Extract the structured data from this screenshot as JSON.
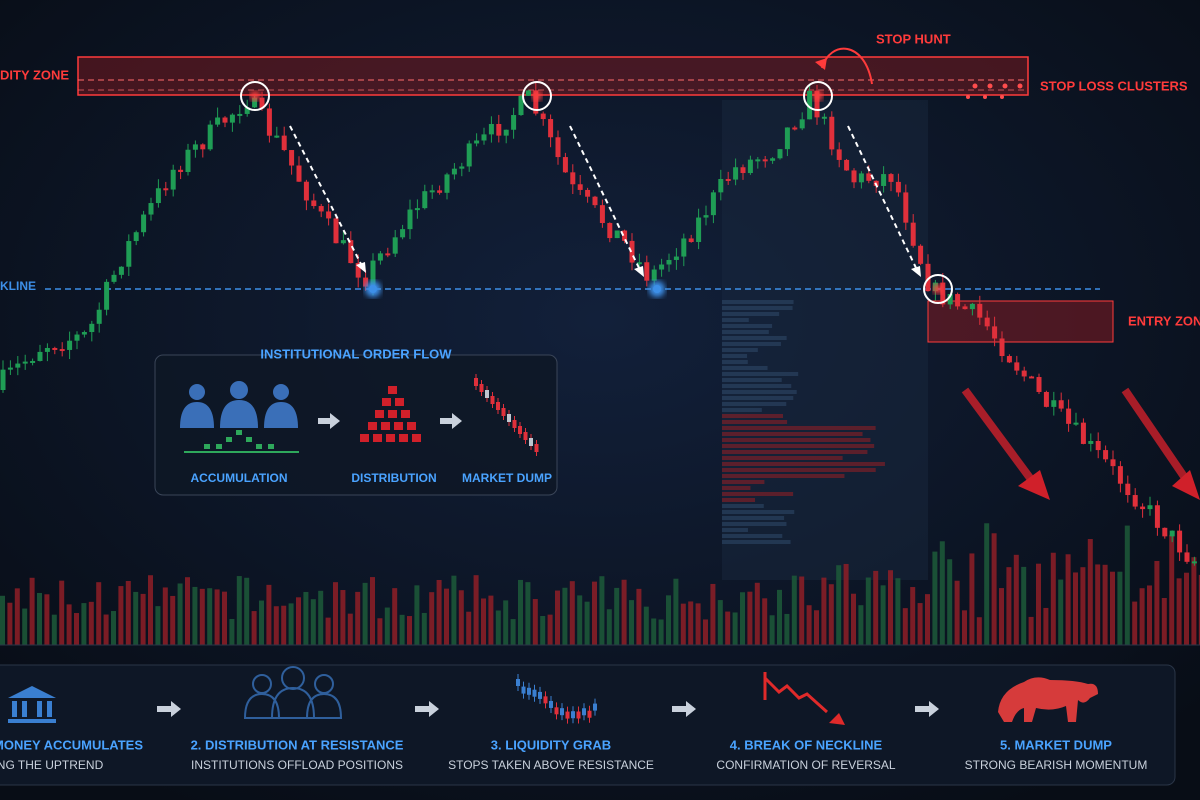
{
  "zones": {
    "liquidity_zone": "DITY ZONE",
    "stop_hunt": "STOP HUNT",
    "stop_loss_clusters": "STOP LOSS CLUSTERS",
    "neckline": "KLINE",
    "entry_zone": "ENTRY ZONE"
  },
  "order_flow": {
    "title": "INSTITUTIONAL ORDER FLOW",
    "stages": [
      "ACCUMULATION",
      "DISTRIBUTION",
      "MARKET DUMP"
    ]
  },
  "steps": [
    {
      "title": "MONEY ACCUMULATES",
      "subtitle": "NG THE UPTREND"
    },
    {
      "title": "2. DISTRIBUTION AT RESISTANCE",
      "subtitle": "INSTITUTIONS OFFLOAD POSITIONS"
    },
    {
      "title": "3. LIQUIDITY GRAB",
      "subtitle": "STOPS TAKEN ABOVE RESISTANCE"
    },
    {
      "title": "4. BREAK OF NECKLINE",
      "subtitle": "CONFIRMATION OF REVERSAL"
    },
    {
      "title": "5. MARKET DUMP",
      "subtitle": "STRONG BEARISH MOMENTUM"
    }
  ]
}
